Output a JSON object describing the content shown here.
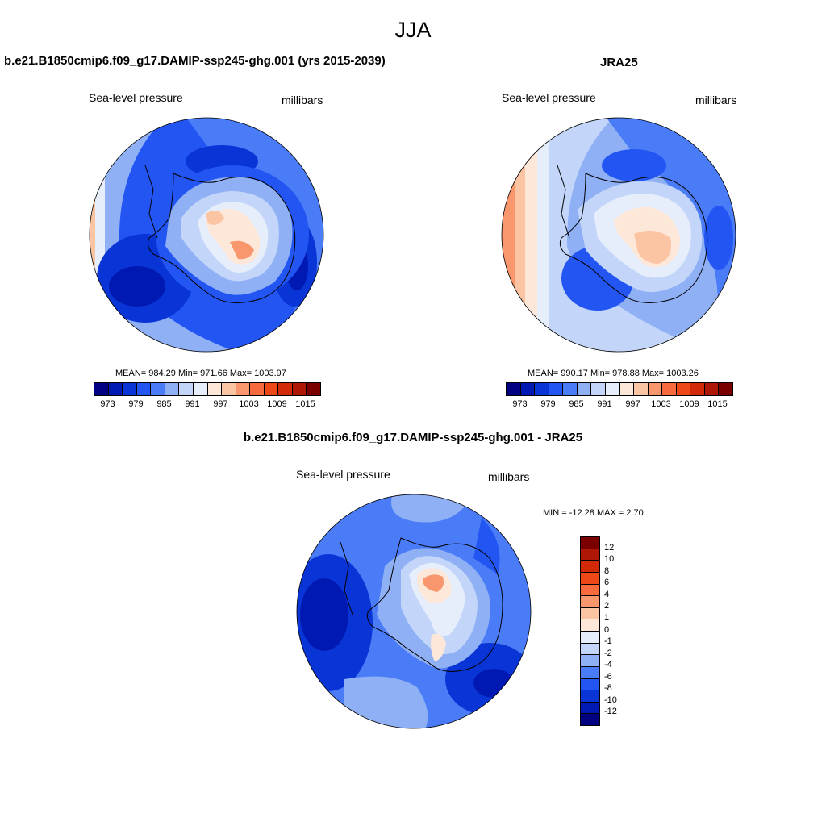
{
  "title": "JJA",
  "panels": [
    {
      "title": "b.e21.B1850cmip6.f09_g17.DAMIP-ssp245-ghg.001 (yrs 2015-2039)",
      "left_label": "Sea-level pressure",
      "right_label": "millibars",
      "stats": "MEAN= 984.29  Min= 971.66  Max= 1003.97"
    },
    {
      "title": "JRA25",
      "left_label": "Sea-level pressure",
      "right_label": "millibars",
      "stats": "MEAN= 990.17  Min= 978.88  Max= 1003.26"
    },
    {
      "title": "b.e21.B1850cmip6.f09_g17.DAMIP-ssp245-ghg.001 - JRA25",
      "left_label": "Sea-level pressure",
      "right_label": "millibars",
      "stats": "MIN = -12.28 MAX =   2.70"
    }
  ],
  "colorbar_abs": {
    "colors": [
      "#000080",
      "#0019b3",
      "#0a35d6",
      "#2255f2",
      "#4b7cf7",
      "#8fb0f5",
      "#c3d6fa",
      "#e6eefc",
      "#fde7d8",
      "#fbc4a3",
      "#f8976d",
      "#f66a3d",
      "#ef4818",
      "#d22a08",
      "#ad1704",
      "#7a0000"
    ],
    "labels": [
      "973",
      "979",
      "985",
      "991",
      "997",
      "1003",
      "1009",
      "1015"
    ]
  },
  "colorbar_diff": {
    "colors": [
      "#7a0000",
      "#ad1704",
      "#d22a08",
      "#ef4818",
      "#f66a3d",
      "#f8976d",
      "#fbc4a3",
      "#fde7d8",
      "#e6eefc",
      "#c3d6fa",
      "#8fb0f5",
      "#4b7cf7",
      "#2255f2",
      "#0a35d6",
      "#0019b3",
      "#000080"
    ],
    "labels": [
      "12",
      "10",
      "8",
      "6",
      "4",
      "2",
      "1",
      "0",
      "-1",
      "-2",
      "-4",
      "-6",
      "-8",
      "-10",
      "-12"
    ]
  }
}
